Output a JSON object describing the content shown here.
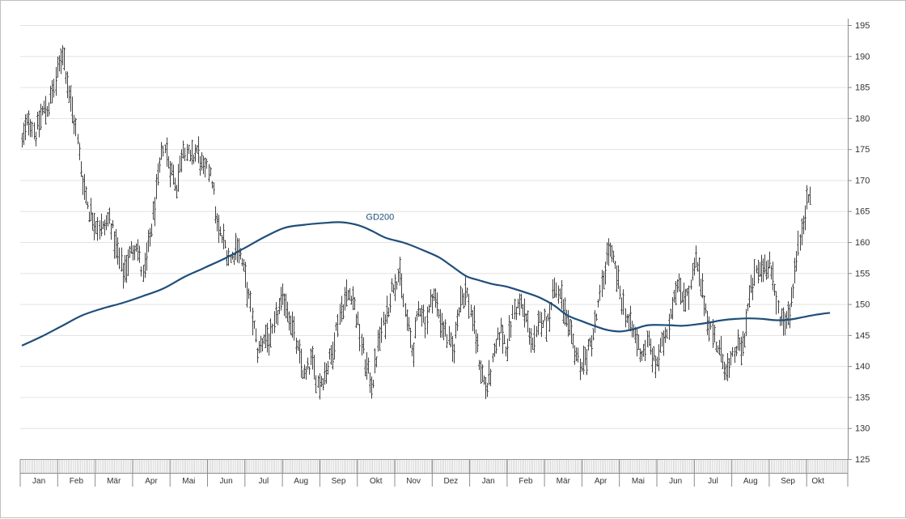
{
  "chart_data": {
    "type": "ohlc",
    "title": "",
    "xlabel": "",
    "ylabel": "",
    "ylim": [
      125,
      195
    ],
    "y_ticks": [
      125,
      130,
      135,
      140,
      145,
      150,
      155,
      160,
      165,
      170,
      175,
      180,
      185,
      190,
      195
    ],
    "y_axis_side": "right",
    "grid": "horizontal",
    "months": [
      "Jan",
      "Feb",
      "Mär",
      "Apr",
      "Mai",
      "Jun",
      "Jul",
      "Aug",
      "Sep",
      "Okt",
      "Nov",
      "Dez",
      "Jan",
      "Feb",
      "Mär",
      "Apr",
      "Mai",
      "Jun",
      "Jul",
      "Aug",
      "Sep",
      "Okt"
    ],
    "bar_color": "#404040",
    "series": [
      {
        "name": "GD200",
        "color": "#1f4e79",
        "anchors": [
          [
            0,
            143.3
          ],
          [
            3,
            144.8
          ],
          [
            6,
            146.5
          ],
          [
            9,
            148.2
          ],
          [
            12,
            149.3
          ],
          [
            15,
            150.2
          ],
          [
            18,
            151.3
          ],
          [
            21,
            152.5
          ],
          [
            24,
            154.3
          ],
          [
            27,
            155.8
          ],
          [
            30,
            157.3
          ],
          [
            33,
            159.0
          ],
          [
            36,
            160.8
          ],
          [
            39,
            162.3
          ],
          [
            42,
            162.8
          ],
          [
            45,
            163.1
          ],
          [
            47.5,
            163.2
          ],
          [
            50,
            162.7
          ],
          [
            52,
            161.8
          ],
          [
            54,
            160.7
          ],
          [
            57,
            159.8
          ],
          [
            60,
            158.5
          ],
          [
            62,
            157.5
          ],
          [
            64,
            156.0
          ],
          [
            66,
            154.5
          ],
          [
            68,
            153.8
          ],
          [
            70,
            153.2
          ],
          [
            72,
            152.8
          ],
          [
            75,
            151.8
          ],
          [
            77,
            151.0
          ],
          [
            79,
            149.8
          ],
          [
            81,
            148.2
          ],
          [
            83,
            147.3
          ],
          [
            85,
            146.5
          ],
          [
            87,
            145.8
          ],
          [
            89,
            145.6
          ],
          [
            91,
            146.0
          ],
          [
            93,
            146.6
          ],
          [
            96,
            146.6
          ],
          [
            98,
            146.5
          ],
          [
            100,
            146.7
          ],
          [
            102,
            147.0
          ],
          [
            104,
            147.4
          ],
          [
            106,
            147.6
          ],
          [
            108,
            147.7
          ],
          [
            110,
            147.6
          ],
          [
            112,
            147.4
          ],
          [
            114,
            147.5
          ],
          [
            116,
            147.9
          ],
          [
            118,
            148.3
          ],
          [
            120,
            148.6
          ]
        ]
      }
    ],
    "price_path": [
      [
        0,
        176
      ],
      [
        1,
        180
      ],
      [
        2,
        177.5
      ],
      [
        3,
        181
      ],
      [
        4,
        182
      ],
      [
        5,
        186
      ],
      [
        6,
        191
      ],
      [
        7,
        184
      ],
      [
        8,
        178
      ],
      [
        9,
        170
      ],
      [
        10,
        165
      ],
      [
        11,
        163
      ],
      [
        12,
        162
      ],
      [
        13,
        164
      ],
      [
        14,
        159
      ],
      [
        15,
        155
      ],
      [
        16,
        158
      ],
      [
        17,
        160
      ],
      [
        18,
        154
      ],
      [
        19,
        161
      ],
      [
        20,
        168
      ],
      [
        21,
        176
      ],
      [
        22,
        172
      ],
      [
        23,
        169
      ],
      [
        24,
        176
      ],
      [
        25,
        173
      ],
      [
        26,
        175
      ],
      [
        27,
        171
      ],
      [
        28,
        172
      ],
      [
        29,
        162
      ],
      [
        30,
        160
      ],
      [
        31,
        157
      ],
      [
        32,
        160
      ],
      [
        33,
        155
      ],
      [
        34,
        149
      ],
      [
        35,
        142
      ],
      [
        36,
        145
      ],
      [
        37,
        144
      ],
      [
        38,
        149
      ],
      [
        39,
        151
      ],
      [
        40,
        147
      ],
      [
        41,
        142
      ],
      [
        42,
        138
      ],
      [
        43,
        141
      ],
      [
        44,
        137
      ],
      [
        45,
        139
      ],
      [
        46,
        142
      ],
      [
        47,
        148
      ],
      [
        48,
        151
      ],
      [
        49,
        152
      ],
      [
        50,
        146
      ],
      [
        51,
        140
      ],
      [
        52,
        137
      ],
      [
        53,
        144
      ],
      [
        54,
        148
      ],
      [
        55,
        153
      ],
      [
        56,
        155
      ],
      [
        57,
        148
      ],
      [
        58,
        142
      ],
      [
        59,
        150
      ],
      [
        60,
        147
      ],
      [
        61,
        152
      ],
      [
        62,
        148
      ],
      [
        63,
        145
      ],
      [
        64,
        142
      ],
      [
        65,
        151
      ],
      [
        66,
        152
      ],
      [
        67,
        147
      ],
      [
        68,
        140
      ],
      [
        69,
        136
      ],
      [
        70,
        141
      ],
      [
        71,
        146
      ],
      [
        72,
        143
      ],
      [
        73,
        149
      ],
      [
        74,
        150
      ],
      [
        75,
        147
      ],
      [
        76,
        143
      ],
      [
        77,
        148
      ],
      [
        78,
        147
      ],
      [
        79,
        153
      ],
      [
        80,
        151
      ],
      [
        81,
        146
      ],
      [
        82,
        143
      ],
      [
        83,
        140
      ],
      [
        84,
        142
      ],
      [
        85,
        146
      ],
      [
        86,
        152
      ],
      [
        87,
        159
      ],
      [
        88,
        156
      ],
      [
        89,
        151
      ],
      [
        90,
        147
      ],
      [
        91,
        145
      ],
      [
        92,
        142
      ],
      [
        93,
        144
      ],
      [
        94,
        140
      ],
      [
        95,
        143
      ],
      [
        96,
        147
      ],
      [
        97,
        153
      ],
      [
        98,
        152
      ],
      [
        99,
        151
      ],
      [
        100,
        157
      ],
      [
        101,
        152
      ],
      [
        102,
        147
      ],
      [
        103,
        144
      ],
      [
        104,
        141
      ],
      [
        105,
        139
      ],
      [
        106,
        143
      ],
      [
        107,
        143
      ],
      [
        108,
        151
      ],
      [
        109,
        155
      ],
      [
        110,
        156
      ],
      [
        111,
        157
      ],
      [
        112,
        150
      ],
      [
        113,
        147
      ],
      [
        114,
        149
      ],
      [
        115,
        157
      ],
      [
        116,
        164
      ],
      [
        117,
        168
      ]
    ]
  }
}
